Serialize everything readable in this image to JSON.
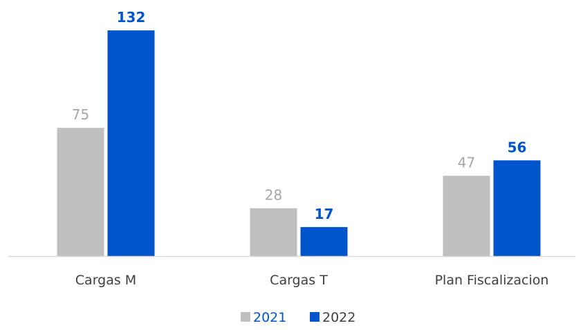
{
  "chart_data": {
    "type": "bar",
    "title": "",
    "xlabel": "",
    "ylabel": "",
    "categories": [
      "Cargas M",
      "Cargas T",
      "Plan Fiscalizacion"
    ],
    "series": [
      {
        "name": "2021",
        "values": [
          75,
          28,
          47
        ],
        "color": "#bfbfbf",
        "label_color": "#a6a6a6",
        "label_bold": false
      },
      {
        "name": "2022",
        "values": [
          132,
          17,
          56
        ],
        "color": "#0055cc",
        "label_color": "#0055cc",
        "label_bold": true
      }
    ],
    "ylim": [
      0,
      132
    ],
    "grid": false,
    "legend_position": "bottom",
    "legend": [
      {
        "label": "2021",
        "swatch_color": "#bfbfbf",
        "text_color": "#0055cc"
      },
      {
        "label": "2022",
        "swatch_color": "#0055cc",
        "text_color": "#404040"
      }
    ],
    "axis_color": "#d9d9d9"
  }
}
